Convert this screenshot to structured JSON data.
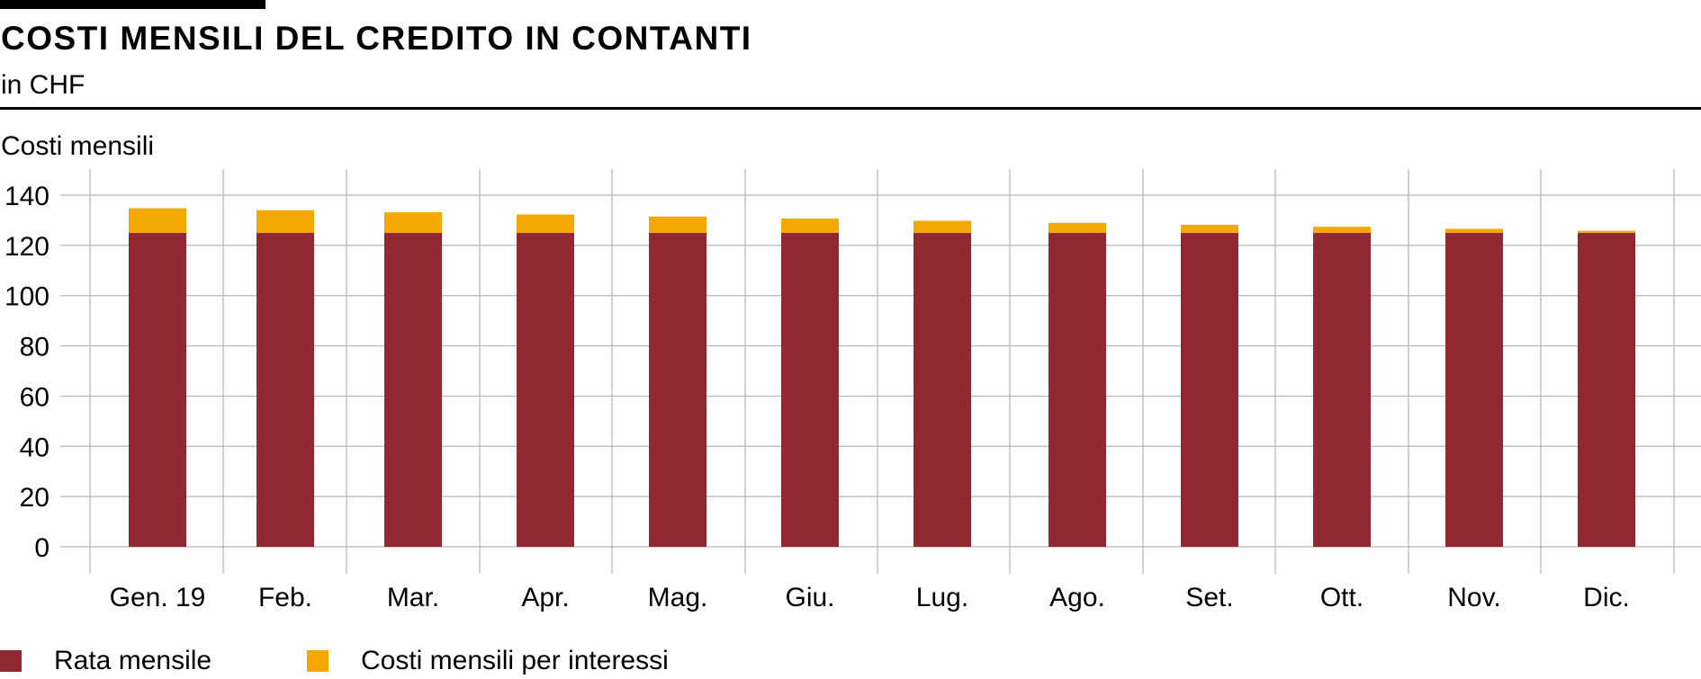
{
  "header": {
    "title": "COSTI MENSILI DEL CREDITO IN CONTANTI",
    "subtitle": "in CHF"
  },
  "colors": {
    "rata": "#922832",
    "interessi": "#f5a800",
    "grid": "#b4b4b4",
    "rule": "#000000"
  },
  "chart_data": {
    "type": "bar",
    "stacked": true,
    "title": "COSTI MENSILI DEL CREDITO IN CONTANTI",
    "subtitle": "in CHF",
    "ylabel": "Costi mensili",
    "xlabel": "",
    "ylim": [
      0,
      140
    ],
    "yticks": [
      0,
      20,
      40,
      60,
      80,
      100,
      120,
      140
    ],
    "grid": true,
    "legend_position": "bottom-left",
    "categories": [
      "Gen. 19",
      "Feb.",
      "Mar.",
      "Apr.",
      "Mag.",
      "Giu.",
      "Lug.",
      "Ago.",
      "Set.",
      "Ott.",
      "Nov.",
      "Dic."
    ],
    "series": [
      {
        "name": "Rata mensile",
        "color": "#922832",
        "values": [
          125,
          125,
          125,
          125,
          125,
          125,
          125,
          125,
          125,
          125,
          125,
          125
        ]
      },
      {
        "name": "Costi mensili per interessi",
        "color": "#f5a800",
        "values": [
          9.8,
          9.0,
          8.2,
          7.3,
          6.5,
          5.7,
          4.8,
          4.0,
          3.2,
          2.4,
          1.6,
          0.8
        ]
      }
    ]
  }
}
